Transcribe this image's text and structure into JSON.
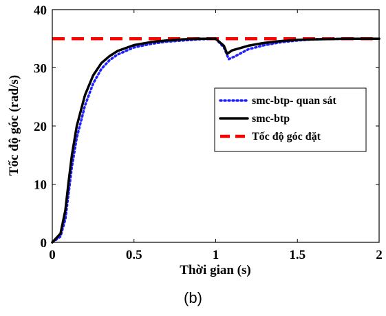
{
  "chart_data": {
    "type": "line",
    "title": "",
    "xlabel": "Thời gian (s)",
    "ylabel": "Tốc độ góc (rad/s)",
    "xlim": [
      0,
      2
    ],
    "ylim": [
      0,
      40
    ],
    "xticks": [
      0,
      0.5,
      1,
      1.5,
      2
    ],
    "xtick_labels": [
      "0",
      "0.5",
      "1",
      "1.5",
      "2"
    ],
    "yticks": [
      0,
      10,
      20,
      30,
      40
    ],
    "ytick_labels": [
      "0",
      "10",
      "20",
      "30",
      "40"
    ],
    "grid": false,
    "legend_position": "right",
    "series": [
      {
        "name": "smc-btp- quan sát",
        "color": "#1f1fff",
        "style": "dotted",
        "x": [
          0,
          0.05,
          0.08,
          0.1,
          0.12,
          0.15,
          0.2,
          0.25,
          0.3,
          0.35,
          0.4,
          0.5,
          0.6,
          0.7,
          0.8,
          0.9,
          1.0,
          1.05,
          1.08,
          1.12,
          1.2,
          1.3,
          1.4,
          1.5,
          1.6,
          1.8,
          2.0
        ],
        "y": [
          0,
          1.0,
          4.0,
          8.5,
          13.0,
          18.0,
          23.5,
          27.3,
          29.8,
          31.3,
          32.3,
          33.5,
          34.1,
          34.5,
          34.7,
          34.9,
          35.0,
          33.5,
          31.5,
          32.0,
          33.2,
          33.9,
          34.4,
          34.7,
          34.9,
          35.0,
          35.0
        ]
      },
      {
        "name": "smc-btp",
        "color": "#000000",
        "style": "solid",
        "x": [
          0,
          0.05,
          0.08,
          0.1,
          0.12,
          0.15,
          0.2,
          0.25,
          0.3,
          0.35,
          0.4,
          0.5,
          0.6,
          0.7,
          0.8,
          0.9,
          1.0,
          1.05,
          1.07,
          1.1,
          1.2,
          1.3,
          1.4,
          1.5,
          1.6,
          1.8,
          2.0
        ],
        "y": [
          0,
          1.5,
          5.5,
          10.5,
          15.0,
          20.0,
          25.3,
          28.7,
          30.8,
          32.0,
          32.9,
          33.9,
          34.4,
          34.7,
          34.9,
          35.0,
          35.0,
          33.8,
          32.4,
          33.0,
          33.8,
          34.3,
          34.6,
          34.8,
          34.9,
          35.0,
          35.0
        ]
      },
      {
        "name": "Tốc độ góc đặt",
        "color": "#ff0000",
        "style": "dashed",
        "x": [
          0,
          2
        ],
        "y": [
          35,
          35
        ]
      }
    ]
  },
  "caption": "(b)"
}
